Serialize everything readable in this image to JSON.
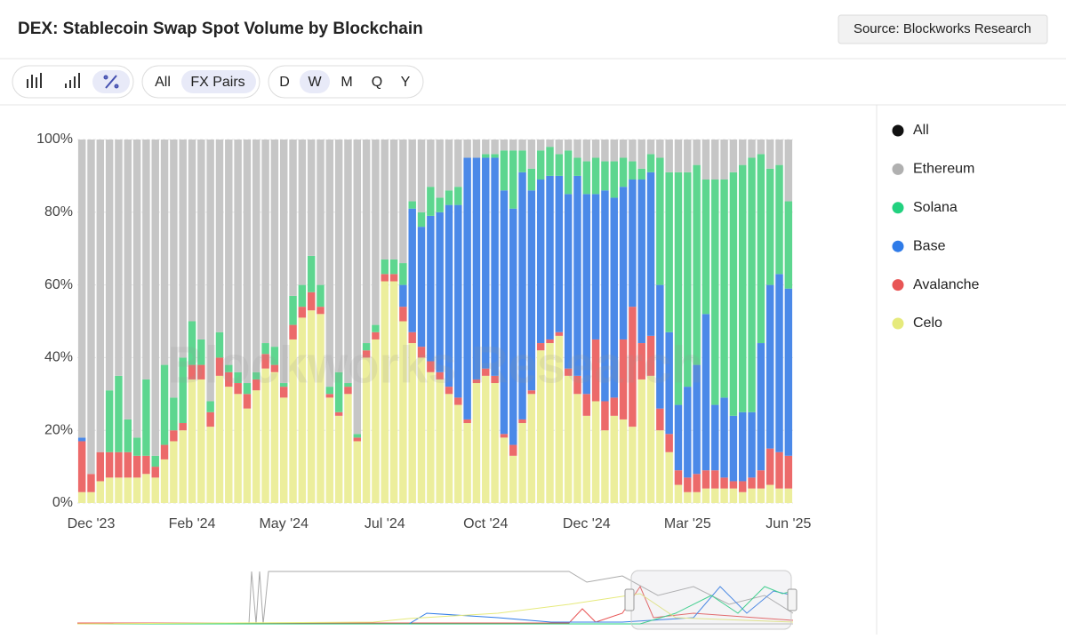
{
  "chart_data": {
    "type": "stacked_percent_bar",
    "title": "DEX: Stablecoin Swap Spot Volume by Blockchain",
    "source": "Source: Blockworks Research",
    "watermark": "Blockworks Research",
    "categories": [
      null,
      "Dec '23",
      null,
      null,
      null,
      null,
      null,
      null,
      null,
      null,
      null,
      null,
      "Feb '24",
      null,
      null,
      null,
      null,
      null,
      null,
      null,
      null,
      null,
      "May '24",
      null,
      null,
      null,
      null,
      null,
      null,
      null,
      null,
      null,
      null,
      "Jul '24",
      null,
      null,
      null,
      null,
      null,
      null,
      null,
      null,
      null,
      null,
      "Oct '24",
      null,
      null,
      null,
      null,
      null,
      null,
      null,
      null,
      null,
      null,
      "Dec '24",
      null,
      null,
      null,
      null,
      null,
      null,
      null,
      null,
      null,
      null,
      "Mar '25",
      null,
      null,
      null,
      null,
      null,
      null,
      null,
      null,
      null,
      null,
      "Jun '25"
    ],
    "series": [
      {
        "name": "Ethereum",
        "color": "#c6c6c6",
        "legend_color": "#b0b0b0",
        "values": [
          82,
          92,
          86,
          69,
          65,
          77,
          82,
          66,
          87,
          62,
          71,
          60,
          50,
          55,
          72,
          53,
          62,
          64,
          67,
          64,
          56,
          57,
          67,
          43,
          40,
          32,
          40,
          68,
          64,
          67,
          81,
          56,
          51,
          33,
          33,
          34,
          17,
          20,
          13,
          16,
          14,
          13,
          5,
          5,
          4,
          4,
          3,
          3,
          3,
          8,
          3,
          2,
          4,
          3,
          5,
          6,
          5,
          6,
          6,
          5,
          6,
          8,
          4,
          5,
          9,
          9,
          9,
          7,
          11,
          11,
          11,
          9,
          7,
          5,
          4,
          8,
          7,
          17
        ]
      },
      {
        "name": "Solana",
        "color": "#5dd68f",
        "legend_color": "#22d17f",
        "values": [
          0,
          0,
          0,
          17,
          21,
          9,
          5,
          21,
          3,
          22,
          9,
          18,
          12,
          7,
          3,
          7,
          2,
          3,
          3,
          2,
          3,
          5,
          1,
          8,
          6,
          10,
          6,
          2,
          11,
          1,
          1,
          2,
          2,
          4,
          4,
          6,
          2,
          4,
          8,
          4,
          4,
          5,
          0,
          0,
          1,
          1,
          11,
          16,
          6,
          6,
          8,
          8,
          6,
          12,
          5,
          9,
          10,
          8,
          10,
          8,
          5,
          3,
          5,
          35,
          44,
          64,
          59,
          55,
          37,
          62,
          60,
          67,
          68,
          70,
          52,
          32,
          30,
          24
        ]
      },
      {
        "name": "Base",
        "color": "#4b89e8",
        "legend_color": "#2f7be8",
        "values": [
          1,
          0,
          0,
          0,
          0,
          0,
          0,
          0,
          0,
          0,
          0,
          0,
          0,
          0,
          0,
          0,
          0,
          0,
          0,
          0,
          0,
          0,
          0,
          0,
          0,
          0,
          0,
          0,
          0,
          0,
          0,
          0,
          0,
          0,
          0,
          6,
          34,
          33,
          40,
          44,
          50,
          53,
          72,
          61,
          58,
          60,
          67,
          65,
          68,
          55,
          45,
          45,
          43,
          48,
          55,
          55,
          40,
          58,
          55,
          42,
          35,
          45,
          45,
          34,
          28,
          18,
          25,
          30,
          43,
          18,
          22,
          18,
          19,
          18,
          35,
          45,
          49,
          46
        ]
      },
      {
        "name": "Avalanche",
        "color": "#ec6a6a",
        "legend_color": "#e85555",
        "values": [
          14,
          5,
          8,
          7,
          7,
          7,
          6,
          5,
          3,
          4,
          3,
          2,
          4,
          4,
          4,
          5,
          4,
          3,
          4,
          3,
          4,
          2,
          3,
          4,
          3,
          5,
          2,
          1,
          1,
          2,
          1,
          2,
          2,
          2,
          2,
          4,
          3,
          3,
          3,
          2,
          2,
          2,
          1,
          1,
          2,
          2,
          1,
          3,
          1,
          1,
          2,
          1,
          1,
          2,
          5,
          6,
          17,
          8,
          5,
          22,
          33,
          10,
          11,
          6,
          5,
          4,
          4,
          5,
          5,
          5,
          3,
          2,
          3,
          3,
          5,
          10,
          10,
          9
        ]
      },
      {
        "name": "Celo",
        "color": "#ecee9c",
        "legend_color": "#e6ea7c",
        "values": [
          3,
          3,
          6,
          7,
          7,
          7,
          7,
          8,
          7,
          12,
          17,
          20,
          34,
          34,
          21,
          35,
          32,
          30,
          26,
          31,
          37,
          36,
          29,
          45,
          51,
          53,
          52,
          29,
          24,
          30,
          17,
          40,
          45,
          61,
          61,
          50,
          44,
          40,
          36,
          34,
          30,
          27,
          22,
          33,
          35,
          33,
          18,
          13,
          22,
          30,
          42,
          44,
          46,
          35,
          30,
          24,
          28,
          20,
          24,
          23,
          21,
          34,
          35,
          20,
          14,
          5,
          3,
          3,
          4,
          4,
          4,
          4,
          3,
          4,
          4,
          5,
          4,
          4
        ]
      }
    ],
    "legend_only": [
      {
        "name": "All",
        "color": "#111111"
      }
    ],
    "ylim": [
      0,
      100
    ],
    "yticks": [
      {
        "value": 0,
        "label": "0%"
      },
      {
        "value": 20,
        "label": "20%"
      },
      {
        "value": 40,
        "label": "40%"
      },
      {
        "value": 60,
        "label": "60%"
      },
      {
        "value": 80,
        "label": "80%"
      },
      {
        "value": 100,
        "label": "100%"
      }
    ],
    "legend": "right"
  },
  "toolbar": {
    "groups": [
      "All",
      "FX Pairs"
    ],
    "active_group": 1,
    "intervals": [
      "D",
      "W",
      "M",
      "Q",
      "Y"
    ],
    "active_interval": 1
  }
}
